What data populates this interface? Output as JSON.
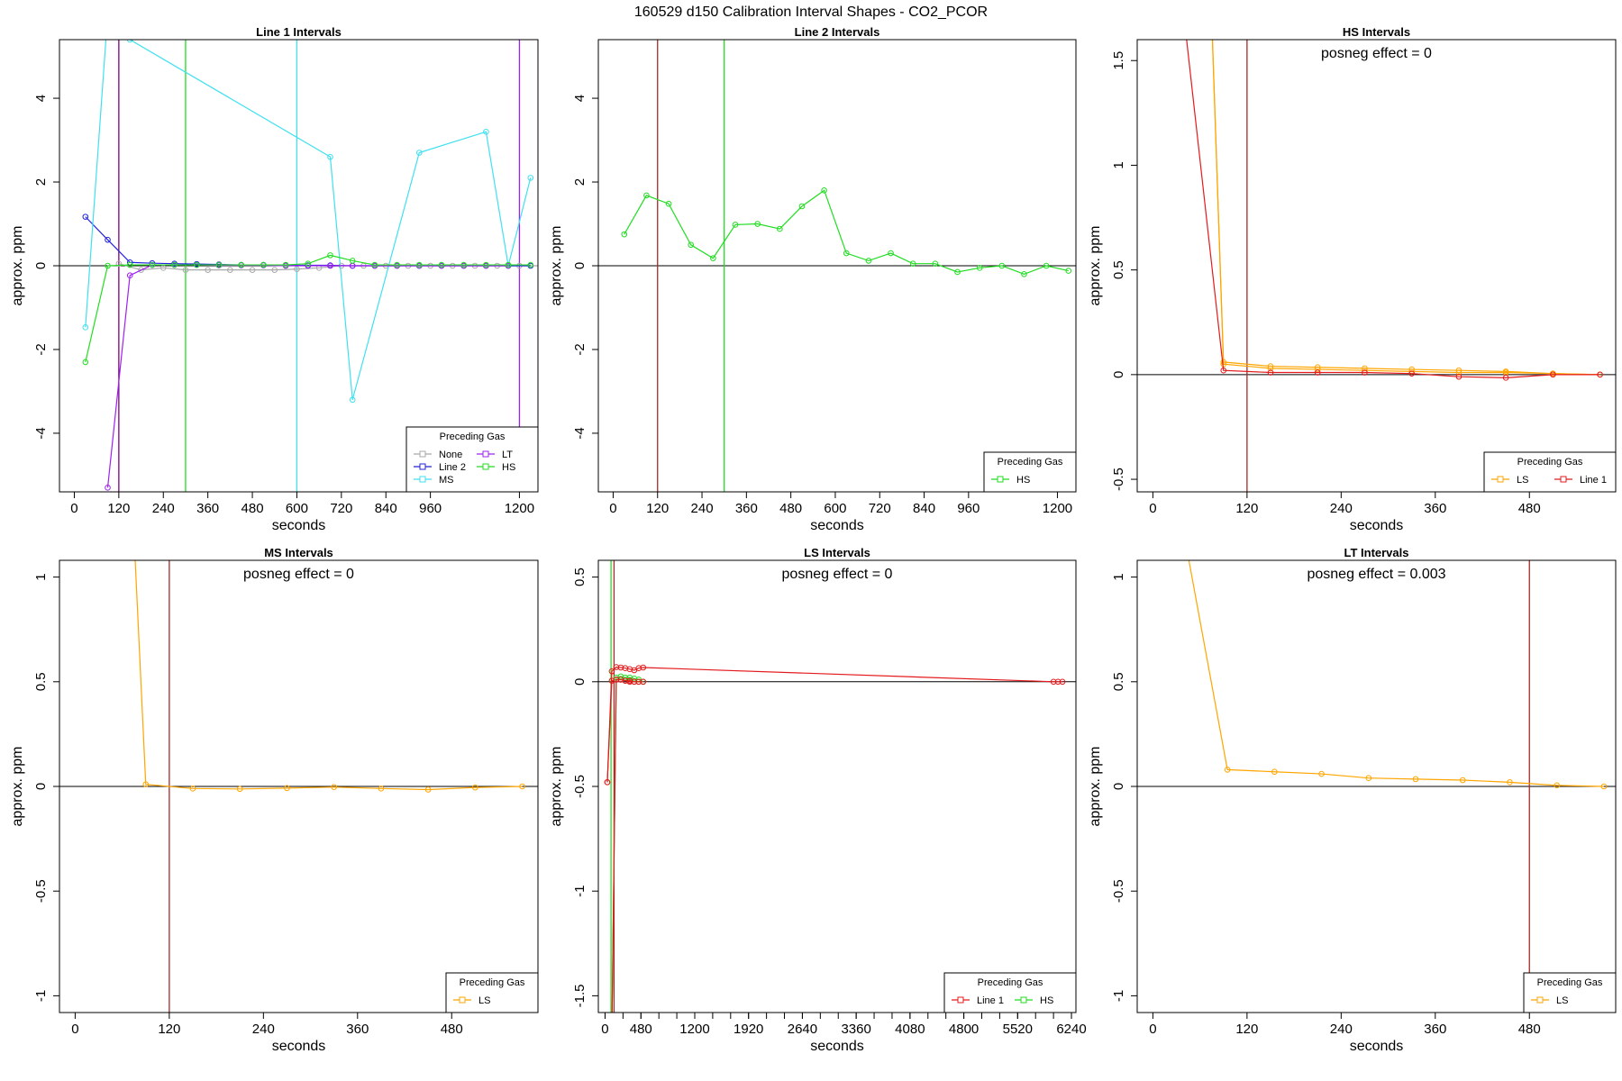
{
  "title": "160529  d150   Calibration Interval Shapes - CO2_PCOR",
  "colors": {
    "None": "#a9a9a9",
    "Line 2": "#2222dd",
    "MS": "#40e0f0",
    "LT": "#a020f0",
    "HS": "#22dd22",
    "LS": "#ffa500",
    "Line 1": "#e41a1c",
    "axis": "#000000"
  },
  "chart_data": [
    {
      "type": "line",
      "title": "Line 1 Intervals",
      "xlabel": "seconds",
      "ylabel": "approx. ppm",
      "xlim": [
        -40,
        1250
      ],
      "ylim": [
        -5.4,
        5.4
      ],
      "xticks": [
        0,
        120,
        240,
        360,
        480,
        600,
        720,
        840,
        960,
        1200
      ],
      "yticks": [
        -4,
        -2,
        0,
        2,
        4
      ],
      "annotation": "",
      "vlines": [
        {
          "x": 120,
          "color": "#800080"
        },
        {
          "x": 300,
          "color": "#22dd22"
        },
        {
          "x": 600,
          "color": "#40e0f0"
        },
        {
          "x": 1200,
          "color": "#a020f0"
        }
      ],
      "legend": {
        "title": "Preceding Gas",
        "entries": [
          "None",
          "LT",
          "Line 2",
          "HS",
          "MS"
        ],
        "ncol": 2,
        "position": "bottom-right"
      },
      "series": [
        {
          "name": "None",
          "x": [
            120,
            180,
            240,
            300,
            360,
            420,
            480,
            540,
            600,
            660,
            720,
            780,
            840,
            900,
            960,
            1020,
            1080,
            1140,
            1200,
            1260
          ],
          "y": [
            0.05,
            -0.1,
            -0.05,
            -0.1,
            -0.1,
            -0.1,
            -0.1,
            -0.1,
            -0.08,
            -0.05,
            0,
            0,
            0,
            0,
            0,
            0,
            0,
            0,
            0,
            0
          ]
        },
        {
          "name": "Line 2",
          "x": [
            30,
            90,
            150,
            210,
            270,
            330,
            390,
            450,
            510,
            570,
            630,
            690,
            750,
            810,
            870,
            930,
            990,
            1050,
            1110,
            1170,
            1230
          ],
          "y": [
            1.17,
            0.62,
            0.08,
            0.06,
            0.05,
            0.04,
            0.03,
            0.02,
            0.02,
            0.01,
            0.01,
            0.01,
            0,
            0,
            0,
            0,
            0,
            0,
            0,
            0,
            0
          ]
        },
        {
          "name": "MS",
          "x": [
            30,
            90,
            150,
            690,
            750,
            930,
            1110,
            1170,
            1230
          ],
          "y": [
            -1.47,
            6.0,
            5.4,
            2.6,
            -3.2,
            2.7,
            3.2,
            0,
            2.1
          ]
        },
        {
          "name": "LT",
          "x": [
            90,
            150,
            210,
            270,
            330,
            390,
            450,
            510,
            570,
            630,
            690,
            750,
            810,
            870,
            930,
            990,
            1050,
            1110,
            1170
          ],
          "y": [
            -5.3,
            -0.23,
            0.02,
            0.02,
            0.02,
            0.01,
            0.01,
            0.01,
            0,
            0,
            0,
            0,
            0,
            0,
            0,
            0,
            0,
            0,
            0
          ]
        },
        {
          "name": "HS",
          "x": [
            30,
            90,
            150,
            210,
            270,
            330,
            390,
            450,
            510,
            570,
            630,
            690,
            750,
            810,
            870,
            930,
            990,
            1050,
            1110,
            1170,
            1230
          ],
          "y": [
            -2.3,
            0,
            0.02,
            0.02,
            0.02,
            0.02,
            0.02,
            0.02,
            0.02,
            0.02,
            0.05,
            0.25,
            0.12,
            0.02,
            0.02,
            0.02,
            0.02,
            0.02,
            0.02,
            0.02,
            0.02
          ]
        }
      ]
    },
    {
      "type": "line",
      "title": "Line 2 Intervals",
      "xlabel": "seconds",
      "ylabel": "approx. ppm",
      "xlim": [
        -40,
        1250
      ],
      "ylim": [
        -5.4,
        5.4
      ],
      "xticks": [
        0,
        120,
        240,
        360,
        480,
        600,
        720,
        840,
        960,
        1200
      ],
      "yticks": [
        -4,
        -2,
        0,
        2,
        4
      ],
      "annotation": "",
      "vlines": [
        {
          "x": 120,
          "color": "#a52a2a"
        },
        {
          "x": 300,
          "color": "#22dd22"
        }
      ],
      "legend": {
        "title": "Preceding Gas",
        "entries": [
          "HS"
        ],
        "ncol": 1,
        "position": "bottom-right"
      },
      "series": [
        {
          "name": "HS",
          "x": [
            30,
            90,
            150,
            210,
            270,
            330,
            390,
            450,
            510,
            570,
            630,
            690,
            750,
            810,
            870,
            930,
            990,
            1050,
            1110,
            1170,
            1230
          ],
          "y": [
            0.75,
            1.68,
            1.48,
            0.5,
            0.18,
            0.98,
            1.0,
            0.88,
            1.42,
            1.8,
            0.3,
            0.12,
            0.3,
            0.05,
            0.05,
            -0.15,
            -0.05,
            0,
            -0.2,
            0,
            -0.12
          ]
        }
      ]
    },
    {
      "type": "line",
      "title": "HS Intervals",
      "xlabel": "seconds",
      "ylabel": "approx. ppm",
      "xlim": [
        -20,
        590
      ],
      "ylim": [
        -0.56,
        1.6
      ],
      "xticks": [
        0,
        120,
        240,
        360,
        480
      ],
      "yticks": [
        -0.5,
        0,
        0.5,
        1,
        1.5
      ],
      "annotation": "posneg effect = 0",
      "vlines": [
        {
          "x": 120,
          "color": "#a52a2a"
        }
      ],
      "legend": {
        "title": "Preceding Gas",
        "entries": [
          "LS",
          "Line 1"
        ],
        "ncol": 2,
        "position": "bottom-right"
      },
      "series": [
        {
          "name": "LS",
          "x": [
            75,
            90,
            150,
            210,
            270,
            330,
            390,
            450,
            510,
            570
          ],
          "y": [
            1.7,
            0.06,
            0.04,
            0.035,
            0.03,
            0.025,
            0.02,
            0.015,
            0.005,
            0
          ]
        },
        {
          "name": "LS",
          "x": [
            75,
            90,
            150,
            210,
            270,
            330,
            390,
            450,
            510,
            570
          ],
          "y": [
            1.7,
            0.05,
            0.03,
            0.025,
            0.02,
            0.015,
            0.01,
            0.01,
            0.005,
            0
          ]
        },
        {
          "name": "Line 1",
          "x": [
            40,
            90,
            150,
            210,
            270,
            330,
            390,
            450,
            510,
            570
          ],
          "y": [
            1.7,
            0.02,
            0.01,
            0.01,
            0.01,
            0.005,
            -0.01,
            -0.015,
            0,
            0
          ]
        }
      ]
    },
    {
      "type": "line",
      "title": "MS Intervals",
      "xlabel": "seconds",
      "ylabel": "approx. ppm",
      "xlim": [
        -20,
        590
      ],
      "ylim": [
        -1.08,
        1.08
      ],
      "xticks": [
        0,
        120,
        240,
        360,
        480
      ],
      "yticks": [
        -1,
        -0.5,
        0,
        0.5,
        1
      ],
      "annotation": "posneg effect = 0",
      "vlines": [
        {
          "x": 120,
          "color": "#a52a2a"
        }
      ],
      "legend": {
        "title": "Preceding Gas",
        "entries": [
          "LS"
        ],
        "ncol": 1,
        "position": "bottom-right"
      },
      "series": [
        {
          "name": "LS",
          "x": [
            75,
            90,
            150,
            210,
            270,
            330,
            390,
            450,
            510,
            570
          ],
          "y": [
            1.2,
            0.01,
            -0.01,
            -0.012,
            -0.008,
            -0.003,
            -0.01,
            -0.015,
            -0.005,
            0
          ]
        }
      ]
    },
    {
      "type": "line",
      "title": "LS Intervals",
      "xlabel": "seconds",
      "ylabel": "approx. ppm",
      "xlim": [
        -90,
        6300
      ],
      "ylim": [
        -1.58,
        0.58
      ],
      "xticks": [
        0,
        480,
        1200,
        1920,
        2640,
        3360,
        4080,
        4800,
        5520,
        6240
      ],
      "yticks": [
        -1.5,
        -1,
        -0.5,
        0,
        0.5
      ],
      "annotation": "posneg effect = 0",
      "vlines": [
        {
          "x": 120,
          "color": "#a52a2a"
        },
        {
          "x": 80,
          "color": "#22dd22"
        }
      ],
      "legend": {
        "title": "Preceding Gas",
        "entries": [
          "Line 1",
          "HS"
        ],
        "ncol": 2,
        "position": "bottom-right"
      },
      "series": [
        {
          "name": "Line 1",
          "x": [
            30,
            90,
            150,
            210,
            270,
            330,
            390,
            450,
            510,
            6000,
            6060,
            6120
          ],
          "y": [
            -0.48,
            0.05,
            0.07,
            0.068,
            0.065,
            0.06,
            0.055,
            0.065,
            0.068,
            0,
            0,
            0
          ]
        },
        {
          "name": "Line 1",
          "x": [
            30,
            90,
            150,
            210,
            270,
            330,
            390,
            450,
            510
          ],
          "y": [
            -0.48,
            0.005,
            0.01,
            0.01,
            0.005,
            0,
            0,
            0,
            0
          ]
        },
        {
          "name": "HS",
          "x": [
            90,
            150,
            210,
            270,
            330,
            390,
            450,
            510
          ],
          "y": [
            -1.7,
            0.02,
            0.025,
            0.02,
            0.02,
            0.015,
            0.01,
            0
          ]
        },
        {
          "name": "Line 1",
          "x": [
            90,
            150,
            210,
            270,
            330,
            390,
            450,
            510
          ],
          "y": [
            -1.7,
            0.01,
            0.01,
            0.005,
            0.005,
            0,
            0,
            0
          ]
        }
      ]
    },
    {
      "type": "line",
      "title": "LT Intervals",
      "xlabel": "seconds",
      "ylabel": "approx. ppm",
      "xlim": [
        -20,
        590
      ],
      "ylim": [
        -1.08,
        1.08
      ],
      "xticks": [
        0,
        120,
        240,
        360,
        480
      ],
      "yticks": [
        -1,
        -0.5,
        0,
        0.5,
        1
      ],
      "annotation": "posneg effect = 0.003",
      "vlines": [
        {
          "x": 480,
          "color": "#a52a2a"
        }
      ],
      "legend": {
        "title": "Preceding Gas",
        "entries": [
          "LS"
        ],
        "ncol": 1,
        "position": "bottom-right"
      },
      "series": [
        {
          "name": "LS",
          "x": [
            40,
            95,
            155,
            215,
            275,
            335,
            395,
            455,
            515,
            575
          ],
          "y": [
            1.2,
            0.08,
            0.07,
            0.06,
            0.04,
            0.035,
            0.03,
            0.02,
            0.005,
            0
          ]
        }
      ]
    }
  ]
}
